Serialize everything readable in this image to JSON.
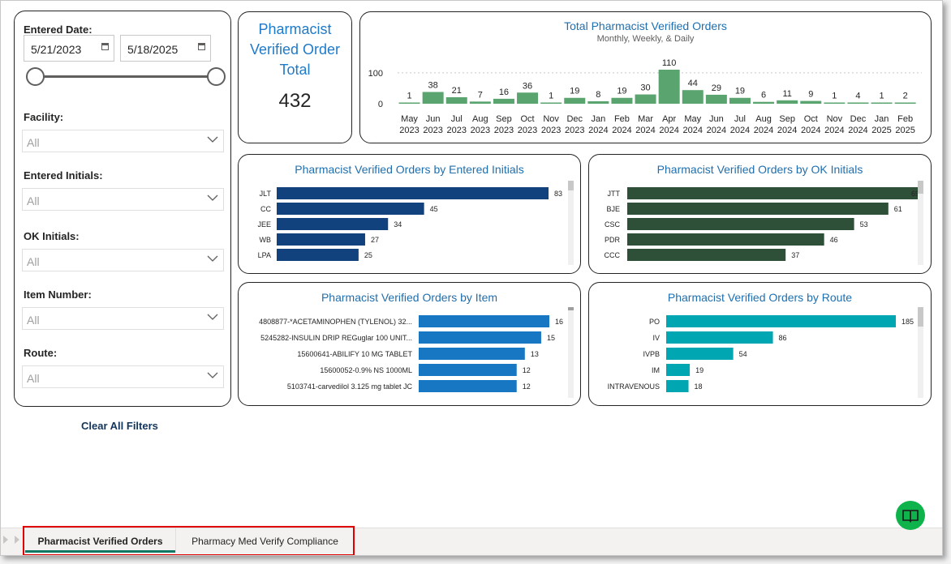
{
  "filters": {
    "entered_date_label": "Entered Date:",
    "start_date": "5/21/2023",
    "end_date": "5/18/2025",
    "facility_label": "Facility:",
    "facility_value": "All",
    "entered_initials_label": "Entered Initials:",
    "entered_initials_value": "All",
    "ok_initials_label": "OK Initials:",
    "ok_initials_value": "All",
    "item_number_label": "Item Number:",
    "item_number_value": "All",
    "route_label": "Route:",
    "route_value": "All",
    "clear_label": "Clear All Filters"
  },
  "kpi": {
    "title": "Pharmacist Verified Order Total",
    "value": "432"
  },
  "colors": {
    "trend_bar": "#5aa56f",
    "entered_bar": "#12427e",
    "ok_bar": "#2e4f38",
    "item_bar": "#1877c2",
    "route_bar": "#00a6b2",
    "title": "#1f6fae",
    "tab_highlight": "#e00000",
    "book_button": "#0fb34c"
  },
  "chart_data": [
    {
      "id": "trend",
      "type": "bar",
      "title": "Total Pharmacist Verified Orders",
      "subtitle": "Monthly, Weekly, & Daily",
      "categories": [
        [
          "May",
          "2023"
        ],
        [
          "Jun",
          "2023"
        ],
        [
          "Jul",
          "2023"
        ],
        [
          "Aug",
          "2023"
        ],
        [
          "Sep",
          "2023"
        ],
        [
          "Oct",
          "2023"
        ],
        [
          "Nov",
          "2023"
        ],
        [
          "Dec",
          "2023"
        ],
        [
          "Jan",
          "2024"
        ],
        [
          "Feb",
          "2024"
        ],
        [
          "Mar",
          "2024"
        ],
        [
          "Apr",
          "2024"
        ],
        [
          "May",
          "2024"
        ],
        [
          "Jun",
          "2024"
        ],
        [
          "Jul",
          "2024"
        ],
        [
          "Aug",
          "2024"
        ],
        [
          "Sep",
          "2024"
        ],
        [
          "Oct",
          "2024"
        ],
        [
          "Nov",
          "2024"
        ],
        [
          "Dec",
          "2024"
        ],
        [
          "Jan",
          "2025"
        ],
        [
          "Feb",
          "2025"
        ]
      ],
      "values": [
        1,
        38,
        21,
        7,
        16,
        36,
        1,
        19,
        8,
        19,
        30,
        110,
        44,
        29,
        19,
        6,
        11,
        9,
        1,
        4,
        1,
        2
      ],
      "yticks": [
        "100",
        "0"
      ],
      "ylim": [
        0,
        110
      ]
    },
    {
      "id": "entered",
      "type": "bar",
      "orientation": "horizontal",
      "title": "Pharmacist Verified Orders by Entered Initials",
      "categories": [
        "JLT",
        "CC",
        "JEE",
        "WB",
        "LPA"
      ],
      "values": [
        83,
        45,
        34,
        27,
        25
      ],
      "xlim": [
        0,
        83
      ]
    },
    {
      "id": "ok",
      "type": "bar",
      "orientation": "horizontal",
      "title": "Pharmacist Verified Orders by OK Initials",
      "categories": [
        "JTT",
        "BJE",
        "CSC",
        "PDR",
        "CCC"
      ],
      "values": [
        69,
        61,
        53,
        46,
        37
      ],
      "xlim": [
        0,
        69
      ]
    },
    {
      "id": "item",
      "type": "bar",
      "orientation": "horizontal",
      "title": "Pharmacist Verified Orders by Item",
      "categories": [
        "4808877-*ACETAMINOPHEN (TYLENOL) 32...",
        "5245282-INSULIN DRIP REGuglar 100 UNIT...",
        "15600641-ABILIFY 10 MG TABLET",
        "15600052-0.9% NS 1000ML",
        "5103741-carvedilol 3.125 mg tablet JC"
      ],
      "values": [
        16,
        15,
        13,
        12,
        12
      ],
      "xlim": [
        0,
        16
      ]
    },
    {
      "id": "route",
      "type": "bar",
      "orientation": "horizontal",
      "title": "Pharmacist Verified Orders by Route",
      "categories": [
        "PO",
        "IV",
        "IVPB",
        "IM",
        "INTRAVENOUS"
      ],
      "values": [
        185,
        86,
        54,
        19,
        18
      ],
      "xlim": [
        0,
        185
      ]
    }
  ],
  "tabs": [
    {
      "label": "Pharmacist Verified Orders",
      "active": true
    },
    {
      "label": "Pharmacy Med Verify Compliance",
      "active": false
    }
  ],
  "icons": {
    "calendar": "calendar-icon",
    "chevron": "chevron-down-icon",
    "book": "book-icon"
  }
}
